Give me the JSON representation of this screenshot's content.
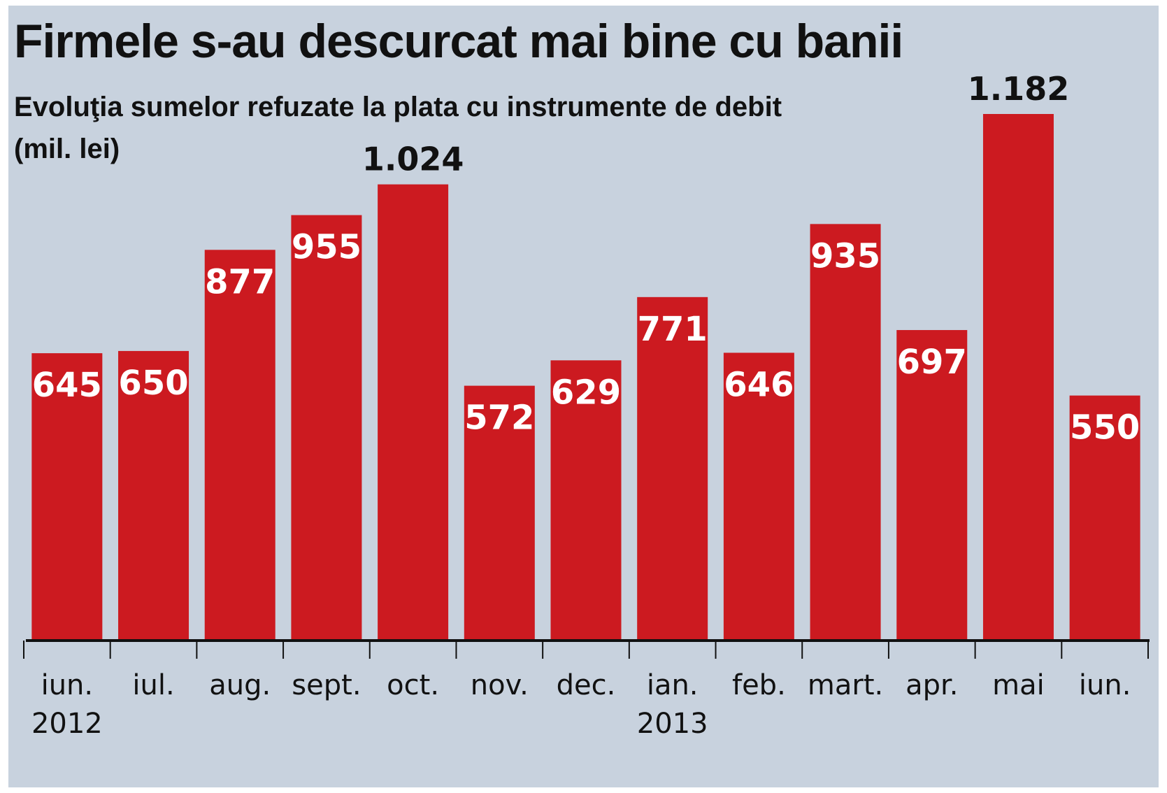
{
  "colors": {
    "background": "#c8d2de",
    "bar": "#cc1a20",
    "text": "#111111",
    "bar_label": "#ffffff"
  },
  "chart_data": {
    "type": "bar",
    "title": "Firmele s-au descurcat mai bine cu banii",
    "subtitle": "Evoluţia sumelor refuzate la plata cu instrumente de debit (mil. lei)",
    "categories": [
      "iun.",
      "iul.",
      "aug.",
      "sept.",
      "oct.",
      "nov.",
      "dec.",
      "ian.",
      "feb.",
      "mart.",
      "apr.",
      "mai",
      "iun."
    ],
    "values": [
      645,
      650,
      877,
      955,
      1024,
      572,
      629,
      771,
      646,
      935,
      697,
      1182,
      550
    ],
    "value_labels": [
      "645",
      "650",
      "877",
      "955",
      "1.024",
      "572",
      "629",
      "771",
      "646",
      "935",
      "697",
      "1.182",
      "550"
    ],
    "year_labels": [
      {
        "index": 0,
        "label": "2012"
      },
      {
        "index": 7,
        "label": "2013"
      }
    ],
    "ylim": [
      0,
      1182
    ],
    "grid": false,
    "legend": "none"
  }
}
